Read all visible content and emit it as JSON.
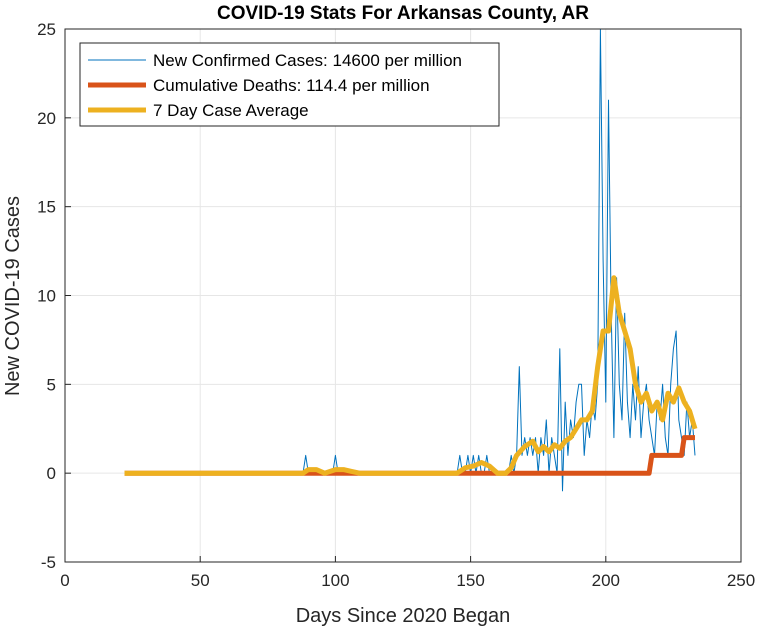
{
  "chart_data": {
    "type": "line",
    "title": "COVID-19 Stats For Arkansas County, AR",
    "xlabel": "Days Since 2020 Began",
    "ylabel": "New COVID-19 Cases",
    "xlim": [
      0,
      250
    ],
    "ylim": [
      -5,
      25
    ],
    "xticks": [
      0,
      50,
      100,
      150,
      200,
      250
    ],
    "yticks": [
      -5,
      0,
      5,
      10,
      15,
      20,
      25
    ],
    "grid": true,
    "legend_position": "top-left",
    "series": [
      {
        "name": "New Confirmed Cases: 14600 per million",
        "color": "#0072BD",
        "x": [
          22,
          88,
          89,
          90,
          99,
          100,
          101,
          145,
          146,
          147,
          148,
          149,
          150,
          151,
          152,
          153,
          154,
          155,
          156,
          157,
          158,
          159,
          160,
          161,
          162,
          163,
          164,
          165,
          166,
          167,
          168,
          169,
          170,
          171,
          172,
          173,
          174,
          175,
          176,
          177,
          178,
          179,
          180,
          181,
          182,
          183,
          184,
          185,
          186,
          187,
          188,
          189,
          190,
          191,
          192,
          193,
          194,
          195,
          196,
          197,
          198,
          199,
          200,
          201,
          202,
          203,
          204,
          205,
          206,
          207,
          208,
          209,
          210,
          211,
          212,
          213,
          214,
          215,
          216,
          217,
          218,
          219,
          220,
          221,
          222,
          223,
          224,
          225,
          226,
          227,
          228,
          229,
          230,
          231,
          232,
          233
        ],
        "y": [
          0,
          0,
          1,
          0,
          0,
          1,
          0,
          0,
          1,
          0,
          0,
          1,
          0,
          1,
          0,
          1,
          0,
          0,
          1,
          0,
          0,
          0,
          0,
          0,
          0,
          0,
          0,
          1,
          0,
          1,
          6,
          1,
          2,
          1,
          2,
          1,
          2,
          0,
          2,
          1,
          3,
          0,
          2,
          1,
          0,
          7,
          -1,
          4,
          1,
          3,
          2,
          4,
          5,
          5,
          1,
          3,
          2,
          4,
          3,
          5,
          25,
          12,
          4,
          21,
          9,
          2,
          11,
          5,
          3,
          9,
          4,
          2,
          5,
          3,
          6,
          2,
          4,
          5,
          3,
          2,
          1,
          4,
          3,
          5,
          2,
          1,
          5,
          7,
          8,
          3,
          2,
          1,
          4,
          2,
          3,
          1
        ],
        "width": 1
      },
      {
        "name": "Cumulative Deaths: 114.4 per million",
        "color": "#D95319",
        "x": [
          22,
          216,
          217,
          228,
          229,
          233
        ],
        "y": [
          0,
          0,
          1,
          1,
          2,
          2
        ],
        "width": 5
      },
      {
        "name": "7 Day Case Average",
        "color": "#EDB120",
        "x": [
          22,
          88,
          90,
          93,
          96,
          100,
          103,
          106,
          109,
          145,
          148,
          151,
          154,
          157,
          160,
          163,
          165,
          167,
          170,
          173,
          175,
          177,
          179,
          181,
          183,
          185,
          187,
          189,
          191,
          193,
          195,
          197,
          199,
          201,
          203,
          205,
          207,
          209,
          211,
          213,
          215,
          217,
          219,
          221,
          223,
          225,
          227,
          229,
          231,
          233
        ],
        "y": [
          0,
          0,
          0.2,
          0.2,
          0,
          0.2,
          0.2,
          0.1,
          0,
          0,
          0.3,
          0.4,
          0.6,
          0.4,
          0,
          0,
          0.3,
          1,
          1.5,
          1.8,
          1.2,
          1.5,
          1.2,
          1.6,
          1.4,
          1.8,
          2,
          2.5,
          3,
          3,
          3.5,
          6,
          8,
          8,
          11,
          9,
          8,
          7,
          5,
          4,
          4.5,
          3.5,
          4,
          3,
          4.5,
          4,
          4.8,
          4,
          3.5,
          2.5
        ],
        "width": 5
      }
    ]
  }
}
